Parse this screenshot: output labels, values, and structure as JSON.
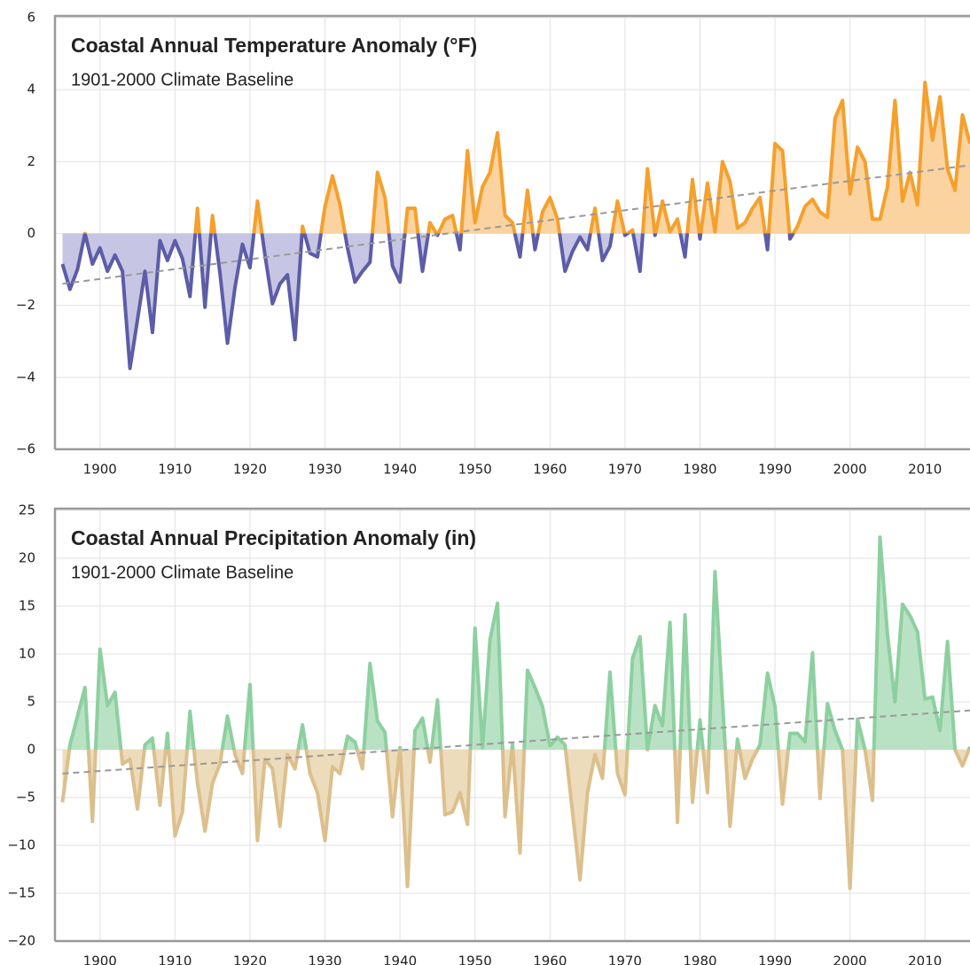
{
  "chart_data": [
    {
      "type": "line",
      "title": "Coastal Annual Temperature Anomaly (°F)",
      "subtitle": "1901-2000 Climate Baseline",
      "x": [
        1895,
        1896,
        1897,
        1898,
        1899,
        1900,
        1901,
        1902,
        1903,
        1904,
        1905,
        1906,
        1907,
        1908,
        1909,
        1910,
        1911,
        1912,
        1913,
        1914,
        1915,
        1916,
        1917,
        1918,
        1919,
        1920,
        1921,
        1922,
        1923,
        1924,
        1925,
        1926,
        1927,
        1928,
        1929,
        1930,
        1931,
        1932,
        1933,
        1934,
        1935,
        1936,
        1937,
        1938,
        1939,
        1940,
        1941,
        1942,
        1943,
        1944,
        1945,
        1946,
        1947,
        1948,
        1949,
        1950,
        1951,
        1952,
        1953,
        1954,
        1955,
        1956,
        1957,
        1958,
        1959,
        1960,
        1961,
        1962,
        1963,
        1964,
        1965,
        1966,
        1967,
        1968,
        1969,
        1970,
        1971,
        1972,
        1973,
        1974,
        1975,
        1976,
        1977,
        1978,
        1979,
        1980,
        1981,
        1982,
        1983,
        1984,
        1985,
        1986,
        1987,
        1988,
        1989,
        1990,
        1991,
        1992,
        1993,
        1994,
        1995,
        1996,
        1997,
        1998,
        1999,
        2000,
        2001,
        2002,
        2003,
        2004,
        2005,
        2006,
        2007,
        2008,
        2009,
        2010,
        2011,
        2012,
        2013,
        2014,
        2015,
        2016
      ],
      "values": [
        -0.85,
        -1.55,
        -1.0,
        0.0,
        -0.85,
        -0.4,
        -1.05,
        -0.6,
        -1.05,
        -3.75,
        -2.4,
        -1.05,
        -2.75,
        -0.2,
        -0.75,
        -0.2,
        -0.7,
        -1.75,
        0.7,
        -2.05,
        0.5,
        -1.1,
        -3.05,
        -1.5,
        -0.3,
        -0.95,
        0.9,
        -0.6,
        -1.95,
        -1.4,
        -1.15,
        -2.95,
        0.2,
        -0.55,
        -0.65,
        0.75,
        1.6,
        0.8,
        -0.4,
        -1.35,
        -1.05,
        -0.8,
        1.7,
        1.0,
        -0.9,
        -1.35,
        0.7,
        0.7,
        -1.05,
        0.3,
        -0.05,
        0.4,
        0.5,
        -0.45,
        2.3,
        0.3,
        1.3,
        1.7,
        2.8,
        0.5,
        0.3,
        -0.65,
        1.2,
        -0.45,
        0.6,
        1.0,
        0.4,
        -1.05,
        -0.5,
        -0.1,
        -0.45,
        0.7,
        -0.75,
        -0.35,
        0.9,
        -0.05,
        0.1,
        -1.05,
        1.8,
        -0.05,
        0.9,
        0.05,
        0.4,
        -0.65,
        1.5,
        -0.15,
        1.4,
        0.05,
        2.0,
        1.45,
        0.15,
        0.3,
        0.7,
        1.0,
        -0.45,
        2.5,
        2.3,
        -0.15,
        0.2,
        0.75,
        0.95,
        0.6,
        0.45,
        3.2,
        3.7,
        1.1,
        2.4,
        2.0,
        0.4,
        0.4,
        1.3,
        3.7,
        0.9,
        1.7,
        0.8,
        4.2,
        2.6,
        3.8,
        1.8,
        1.2,
        3.3,
        2.5
      ],
      "colors": {
        "above": "#f5a02c",
        "above_fill": "#fad3a0",
        "below": "#5c5ca8",
        "below_fill": "#c6c6e4"
      },
      "trend": {
        "x": [
          1895,
          2016
        ],
        "values": [
          -1.4,
          1.9
        ],
        "color": "#999999"
      },
      "xlim": [
        1894,
        2016
      ],
      "xticks": [
        1900,
        1910,
        1920,
        1930,
        1940,
        1950,
        1960,
        1970,
        1980,
        1990,
        2000,
        2010
      ],
      "ylim": [
        -6,
        6
      ],
      "yticks": [
        {
          "value": -6,
          "label": "−6"
        },
        {
          "value": -4,
          "label": "−4"
        },
        {
          "value": -2,
          "label": "−2"
        },
        0,
        2,
        4,
        6
      ],
      "grid": true
    },
    {
      "type": "line",
      "title": "Coastal Annual Precipitation Anomaly (in)",
      "subtitle": "1901-2000 Climate Baseline",
      "x": [
        1895,
        1896,
        1897,
        1898,
        1899,
        1900,
        1901,
        1902,
        1903,
        1904,
        1905,
        1906,
        1907,
        1908,
        1909,
        1910,
        1911,
        1912,
        1913,
        1914,
        1915,
        1916,
        1917,
        1918,
        1919,
        1920,
        1921,
        1922,
        1923,
        1924,
        1925,
        1926,
        1927,
        1928,
        1929,
        1930,
        1931,
        1932,
        1933,
        1934,
        1935,
        1936,
        1937,
        1938,
        1939,
        1940,
        1941,
        1942,
        1943,
        1944,
        1945,
        1946,
        1947,
        1948,
        1949,
        1950,
        1951,
        1952,
        1953,
        1954,
        1955,
        1956,
        1957,
        1958,
        1959,
        1960,
        1961,
        1962,
        1963,
        1964,
        1965,
        1966,
        1967,
        1968,
        1969,
        1970,
        1971,
        1972,
        1973,
        1974,
        1975,
        1976,
        1977,
        1978,
        1979,
        1980,
        1981,
        1982,
        1983,
        1984,
        1985,
        1986,
        1987,
        1988,
        1989,
        1990,
        1991,
        1992,
        1993,
        1994,
        1995,
        1996,
        1997,
        1998,
        1999,
        2000,
        2001,
        2002,
        2003,
        2004,
        2005,
        2006,
        2007,
        2008,
        2009,
        2010,
        2011,
        2012,
        2013,
        2014,
        2015,
        2016
      ],
      "values": [
        -5.5,
        0.5,
        3.5,
        6.5,
        -7.5,
        10.5,
        4.6,
        6.0,
        -1.5,
        -1.0,
        -6.2,
        0.5,
        1.2,
        -5.8,
        1.7,
        -9.0,
        -6.5,
        4.0,
        -3.5,
        -8.5,
        -3.5,
        -1.5,
        3.5,
        -0.5,
        -2.5,
        6.8,
        -9.5,
        -1.0,
        -2.0,
        -8.0,
        -0.5,
        -2.0,
        2.6,
        -2.5,
        -4.5,
        -9.5,
        -1.8,
        -2.5,
        1.4,
        0.8,
        -2.0,
        9.0,
        3.0,
        1.8,
        -7.0,
        0.2,
        -14.3,
        2.0,
        3.3,
        -1.3,
        5.2,
        -6.8,
        -6.5,
        -4.5,
        -7.8,
        12.7,
        0.2,
        11.5,
        15.3,
        -7.0,
        0.6,
        -10.8,
        8.3,
        6.5,
        4.5,
        0.4,
        1.3,
        0.5,
        -6.5,
        -13.6,
        -4.5,
        -0.5,
        -3.0,
        8.1,
        -2.5,
        -4.7,
        9.5,
        11.8,
        0.0,
        4.6,
        2.5,
        13.3,
        -7.6,
        14.1,
        -5.5,
        3.1,
        -4.5,
        18.6,
        5.0,
        -8.0,
        1.1,
        -3.0,
        -1.0,
        0.5,
        8.0,
        4.5,
        -5.7,
        1.7,
        1.7,
        0.8,
        10.1,
        -5.1,
        4.8,
        2.0,
        0.0,
        -14.5,
        3.2,
        0.0,
        -5.3,
        22.2,
        12.0,
        5.0,
        15.2,
        14.0,
        12.3,
        5.3,
        5.5,
        2.0,
        11.3,
        0.0,
        -1.7,
        0.3
      ],
      "colors": {
        "above": "#8dd0a0",
        "above_fill": "#b9e2c4",
        "below": "#dcbf8c",
        "below_fill": "#ecdcbc"
      },
      "trend": {
        "x": [
          1895,
          2016
        ],
        "values": [
          -2.5,
          4.1
        ],
        "color": "#999999"
      },
      "xlim": [
        1894,
        2016
      ],
      "xticks": [
        1900,
        1910,
        1920,
        1930,
        1940,
        1950,
        1960,
        1970,
        1980,
        1990,
        2000,
        2010
      ],
      "ylim": [
        -20,
        25
      ],
      "yticks": [
        {
          "value": -20,
          "label": "−20"
        },
        {
          "value": -15,
          "label": "−15"
        },
        {
          "value": -10,
          "label": "−10"
        },
        {
          "value": -5,
          "label": "−5"
        },
        0,
        5,
        10,
        15,
        20,
        25
      ],
      "grid": true
    }
  ]
}
